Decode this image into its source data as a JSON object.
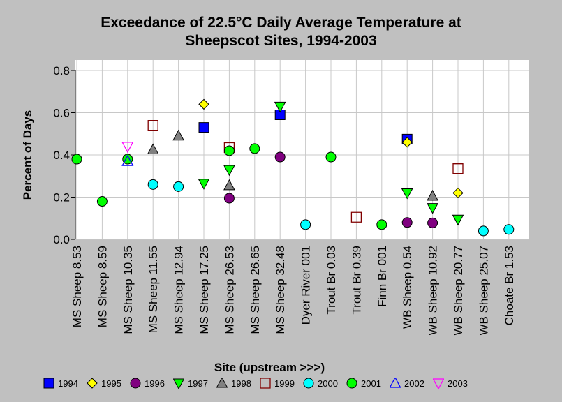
{
  "chart_data": {
    "type": "scatter",
    "title": "Exceedance of 22.5°C Daily Average Temperature at\nSheepscot Sites, 1994-2003",
    "xlabel": "Site (upstream >>>)",
    "ylabel": "Percent of Days",
    "ylim": [
      0,
      0.8
    ],
    "yticks": [
      "0.0",
      "0.2",
      "0.4",
      "0.6",
      "0.8"
    ],
    "grid": true,
    "legend_position": "bottom",
    "categories": [
      "MS Sheep 8.53",
      "MS Sheep 8.59",
      "MS Sheep 10.35",
      "MS Sheep 11.55",
      "MS Sheep 12.94",
      "MS Sheep 17.25",
      "MS Sheep 26.53",
      "MS Sheep 26.65",
      "MS Sheep 32.48",
      "Dyer River 001",
      "Trout Br 0.03",
      "Trout Br 0.39",
      "Finn Br 001",
      "WB Sheep 0.54",
      "WB Sheep 10.92",
      "WB Sheep 20.77",
      "WB Sheep 25.07",
      "Choate Br 1.53"
    ],
    "series": [
      {
        "name": "1994",
        "marker": "square",
        "color": "#0000ff",
        "filled": true,
        "values": [
          null,
          null,
          null,
          null,
          null,
          0.53,
          null,
          null,
          0.59,
          null,
          null,
          null,
          null,
          0.475,
          null,
          null,
          null,
          null
        ]
      },
      {
        "name": "1995",
        "marker": "diamond",
        "color": "#ffff00",
        "filled": true,
        "values": [
          null,
          null,
          null,
          null,
          null,
          0.64,
          null,
          null,
          null,
          null,
          null,
          null,
          null,
          0.46,
          null,
          0.22,
          null,
          null
        ]
      },
      {
        "name": "1996",
        "marker": "circle",
        "color": "#800080",
        "filled": true,
        "values": [
          null,
          null,
          null,
          null,
          null,
          null,
          0.195,
          null,
          0.39,
          null,
          null,
          null,
          null,
          0.08,
          0.078,
          null,
          null,
          null
        ]
      },
      {
        "name": "1997",
        "marker": "triangle-down",
        "color": "#00ff00",
        "filled": true,
        "values": [
          null,
          null,
          null,
          null,
          null,
          0.265,
          0.33,
          null,
          0.63,
          null,
          null,
          null,
          null,
          0.22,
          0.15,
          0.095,
          null,
          null
        ]
      },
      {
        "name": "1998",
        "marker": "triangle-up",
        "color": "#808080",
        "filled": true,
        "values": [
          null,
          null,
          null,
          0.425,
          0.49,
          null,
          0.255,
          null,
          null,
          null,
          null,
          null,
          null,
          null,
          0.205,
          null,
          null,
          null
        ]
      },
      {
        "name": "1999",
        "marker": "square",
        "color": "#800000",
        "filled": false,
        "values": [
          null,
          null,
          null,
          0.54,
          null,
          null,
          0.435,
          null,
          null,
          null,
          null,
          0.105,
          null,
          null,
          null,
          0.335,
          null,
          null
        ]
      },
      {
        "name": "2000",
        "marker": "circle",
        "color": "#00ffff",
        "filled": true,
        "values": [
          null,
          null,
          null,
          0.26,
          0.25,
          null,
          null,
          null,
          null,
          0.07,
          null,
          null,
          null,
          null,
          null,
          null,
          0.04,
          0.047
        ]
      },
      {
        "name": "2001",
        "marker": "circle",
        "color": "#00ff00",
        "filled": true,
        "values": [
          0.38,
          0.18,
          0.38,
          null,
          null,
          null,
          0.42,
          0.43,
          null,
          null,
          0.39,
          null,
          0.07,
          null,
          null,
          null,
          null,
          null
        ]
      },
      {
        "name": "2002",
        "marker": "triangle-up",
        "color": "#0000ff",
        "filled": false,
        "values": [
          null,
          null,
          0.37,
          null,
          null,
          null,
          null,
          null,
          null,
          null,
          null,
          null,
          null,
          null,
          null,
          null,
          null,
          null
        ]
      },
      {
        "name": "2003",
        "marker": "triangle-down",
        "color": "#ff00ff",
        "filled": false,
        "values": [
          null,
          null,
          0.44,
          null,
          null,
          null,
          null,
          null,
          null,
          null,
          null,
          null,
          null,
          null,
          null,
          null,
          null,
          null
        ]
      }
    ]
  }
}
